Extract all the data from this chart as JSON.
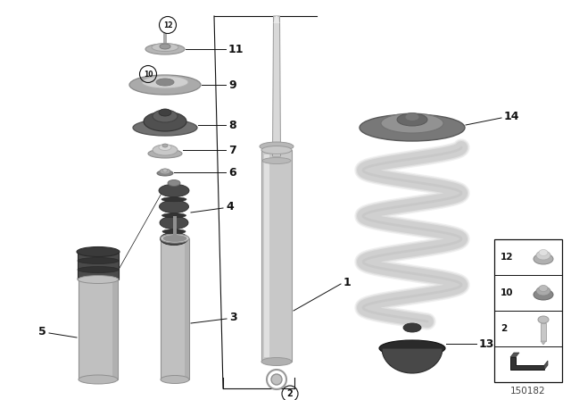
{
  "bg_color": "#ffffff",
  "catalog_number": "150182",
  "lc": "#111111",
  "shock_body_color": "#c8c8c8",
  "shock_edge": "#999999",
  "light_gray": "#c0c0c0",
  "med_gray": "#909090",
  "dark_gray": "#444444",
  "very_dark": "#2a2a2a",
  "mount_gray": "#888888",
  "plate_gray": "#aaaaaa",
  "spring_color": "#e8e8e8",
  "spring_edge": "#c0c0c0",
  "rubber_dark": "#3c3c3c",
  "rubber_mid": "#555555",
  "bump_color": "#4a4a4a"
}
